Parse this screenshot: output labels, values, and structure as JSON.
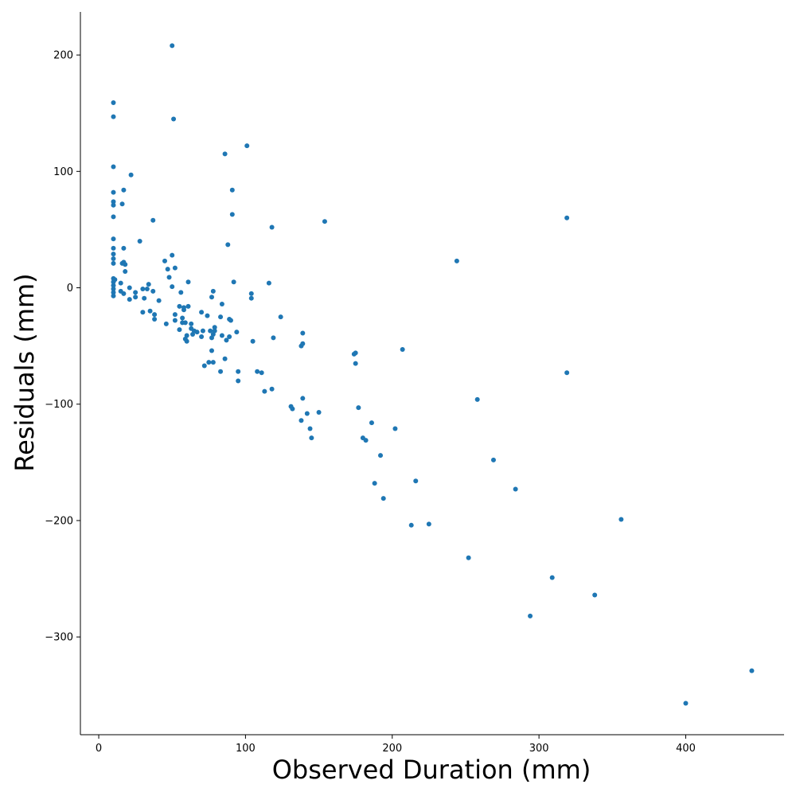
{
  "chart_data": {
    "type": "scatter",
    "title": "",
    "xlabel": "Observed Duration (mm)",
    "ylabel": "Residuals (mm)",
    "xlim": [
      -12.5,
      467
    ],
    "ylim": [
      -384,
      237
    ],
    "xticks": [
      0,
      100,
      200,
      300,
      400
    ],
    "yticks": [
      -300,
      -200,
      -100,
      0,
      100,
      200
    ],
    "xtick_labels": [
      "0",
      "100",
      "200",
      "300",
      "400"
    ],
    "ytick_labels": [
      "−300",
      "−200",
      "−100",
      "0",
      "100",
      "200"
    ],
    "grid": false,
    "marker_color": "#1f77b4",
    "points": [
      [
        10,
        159
      ],
      [
        10,
        147
      ],
      [
        10,
        104
      ],
      [
        10,
        82
      ],
      [
        10,
        74
      ],
      [
        10,
        71
      ],
      [
        10,
        61
      ],
      [
        10,
        42
      ],
      [
        10,
        34
      ],
      [
        10,
        29
      ],
      [
        10,
        25
      ],
      [
        10,
        21
      ],
      [
        10,
        8
      ],
      [
        10,
        5
      ],
      [
        10,
        2
      ],
      [
        10,
        -1
      ],
      [
        10,
        -4
      ],
      [
        10,
        -7
      ],
      [
        11,
        7
      ],
      [
        15,
        4
      ],
      [
        15,
        -3
      ],
      [
        16,
        21
      ],
      [
        16,
        72
      ],
      [
        17,
        -5
      ],
      [
        17,
        34
      ],
      [
        17,
        22
      ],
      [
        17,
        84
      ],
      [
        18,
        20
      ],
      [
        18,
        14
      ],
      [
        21,
        -10
      ],
      [
        21,
        0
      ],
      [
        22,
        97
      ],
      [
        25,
        -4
      ],
      [
        25,
        -8
      ],
      [
        28,
        40
      ],
      [
        30,
        -1
      ],
      [
        30,
        -21
      ],
      [
        31,
        -9
      ],
      [
        33,
        -1
      ],
      [
        34,
        3
      ],
      [
        35,
        -20
      ],
      [
        37,
        58
      ],
      [
        37,
        -3
      ],
      [
        38,
        -23
      ],
      [
        38,
        -27
      ],
      [
        41,
        -11
      ],
      [
        45,
        23
      ],
      [
        46,
        -31
      ],
      [
        47,
        16
      ],
      [
        48,
        9
      ],
      [
        50,
        208
      ],
      [
        50,
        28
      ],
      [
        50,
        1
      ],
      [
        51,
        145
      ],
      [
        52,
        17
      ],
      [
        52,
        -23
      ],
      [
        52,
        -28
      ],
      [
        55,
        -16
      ],
      [
        55,
        -36
      ],
      [
        56,
        -4
      ],
      [
        57,
        -26
      ],
      [
        57,
        -30
      ],
      [
        58,
        -19
      ],
      [
        58,
        -17
      ],
      [
        59,
        -30
      ],
      [
        59,
        -44
      ],
      [
        60,
        -46
      ],
      [
        60,
        -41
      ],
      [
        61,
        5
      ],
      [
        61,
        -16
      ],
      [
        63,
        -35
      ],
      [
        63,
        -31
      ],
      [
        64,
        -40
      ],
      [
        65,
        -37
      ],
      [
        67,
        -38
      ],
      [
        70,
        -42
      ],
      [
        70,
        -21
      ],
      [
        71,
        -37
      ],
      [
        72,
        -67
      ],
      [
        74,
        -24
      ],
      [
        75,
        -64
      ],
      [
        76,
        -37
      ],
      [
        77,
        -43
      ],
      [
        77,
        -54
      ],
      [
        77,
        -8
      ],
      [
        78,
        -3
      ],
      [
        78,
        -64
      ],
      [
        78,
        -40
      ],
      [
        79,
        -34
      ],
      [
        79,
        -37
      ],
      [
        83,
        -25
      ],
      [
        83,
        -72
      ],
      [
        84,
        -41
      ],
      [
        84,
        -14
      ],
      [
        86,
        115
      ],
      [
        86,
        -61
      ],
      [
        87,
        -45
      ],
      [
        88,
        37
      ],
      [
        89,
        -27
      ],
      [
        89,
        -42
      ],
      [
        90,
        -28
      ],
      [
        91,
        84
      ],
      [
        91,
        63
      ],
      [
        92,
        5
      ],
      [
        94,
        -38
      ],
      [
        95,
        -72
      ],
      [
        95,
        -80
      ],
      [
        101,
        122
      ],
      [
        104,
        -9
      ],
      [
        104,
        -5
      ],
      [
        105,
        -46
      ],
      [
        108,
        -72
      ],
      [
        111,
        -73
      ],
      [
        113,
        -89
      ],
      [
        116,
        4
      ],
      [
        118,
        52
      ],
      [
        118,
        -87
      ],
      [
        119,
        -43
      ],
      [
        124,
        -25
      ],
      [
        131,
        -102
      ],
      [
        132,
        -104
      ],
      [
        138,
        -50
      ],
      [
        138,
        -114
      ],
      [
        139,
        -39
      ],
      [
        139,
        -48
      ],
      [
        139,
        -95
      ],
      [
        142,
        -108
      ],
      [
        144,
        -121
      ],
      [
        145,
        -129
      ],
      [
        150,
        -107
      ],
      [
        154,
        57
      ],
      [
        174,
        -57
      ],
      [
        175,
        -56
      ],
      [
        175,
        -65
      ],
      [
        177,
        -103
      ],
      [
        180,
        -129
      ],
      [
        182,
        -131
      ],
      [
        186,
        -116
      ],
      [
        188,
        -168
      ],
      [
        192,
        -144
      ],
      [
        194,
        -181
      ],
      [
        202,
        -121
      ],
      [
        207,
        -53
      ],
      [
        213,
        -204
      ],
      [
        216,
        -166
      ],
      [
        225,
        -203
      ],
      [
        244,
        23
      ],
      [
        252,
        -232
      ],
      [
        258,
        -96
      ],
      [
        269,
        -148
      ],
      [
        284,
        -173
      ],
      [
        294,
        -282
      ],
      [
        309,
        -249
      ],
      [
        319,
        60
      ],
      [
        319,
        -73
      ],
      [
        338,
        -264
      ],
      [
        356,
        -199
      ],
      [
        400,
        -357
      ],
      [
        445,
        -329
      ]
    ]
  }
}
